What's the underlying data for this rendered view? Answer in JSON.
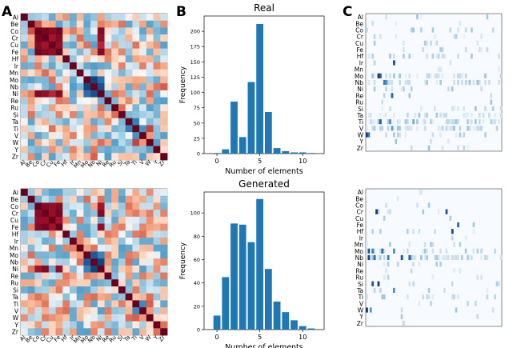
{
  "panel_labels": {
    "a": "A",
    "b": "B",
    "c": "C"
  },
  "elements": [
    "Al",
    "Be",
    "Co",
    "Cr",
    "Cu",
    "Fe",
    "Hf",
    "Ir",
    "Mn",
    "Mo",
    "Nb",
    "Ni",
    "Re",
    "Ru",
    "Si",
    "Ta",
    "Ti",
    "V",
    "W",
    "Y",
    "Zr"
  ],
  "colors": {
    "heat_red": "#67001f",
    "heat_blue": "#053061",
    "bar": "#1f77b4",
    "mat_dark": "#08306b"
  },
  "chart_data": [
    {
      "type": "bar",
      "title": "Real",
      "xlabel": "Number of elements",
      "ylabel": "Frequency",
      "x": [
        0,
        1,
        2,
        3,
        4,
        5,
        6,
        7,
        8,
        9,
        10,
        11
      ],
      "values": [
        1,
        7,
        85,
        27,
        117,
        212,
        68,
        9,
        4,
        2,
        2,
        1
      ],
      "xticks": [
        "0",
        "5",
        "10"
      ],
      "yticks": [
        "0",
        "25",
        "50",
        "75",
        "100",
        "125",
        "150",
        "175",
        "200"
      ],
      "xlim": [
        -1.5,
        12.5
      ],
      "ylim": [
        0,
        225
      ]
    },
    {
      "type": "bar",
      "title": "Generated",
      "xlabel": "Number of elements",
      "ylabel": "Frequency",
      "x": [
        0,
        1,
        2,
        3,
        4,
        5,
        6,
        7,
        8,
        9,
        10,
        11
      ],
      "values": [
        12,
        45,
        91,
        90,
        75,
        112,
        52,
        24,
        15,
        8,
        3,
        1
      ],
      "xticks": [
        "0",
        "5",
        "10"
      ],
      "yticks": [
        "0",
        "20",
        "40",
        "60",
        "80",
        "100"
      ],
      "xlim": [
        -1.5,
        12.5
      ],
      "ylim": [
        0,
        118
      ]
    }
  ]
}
